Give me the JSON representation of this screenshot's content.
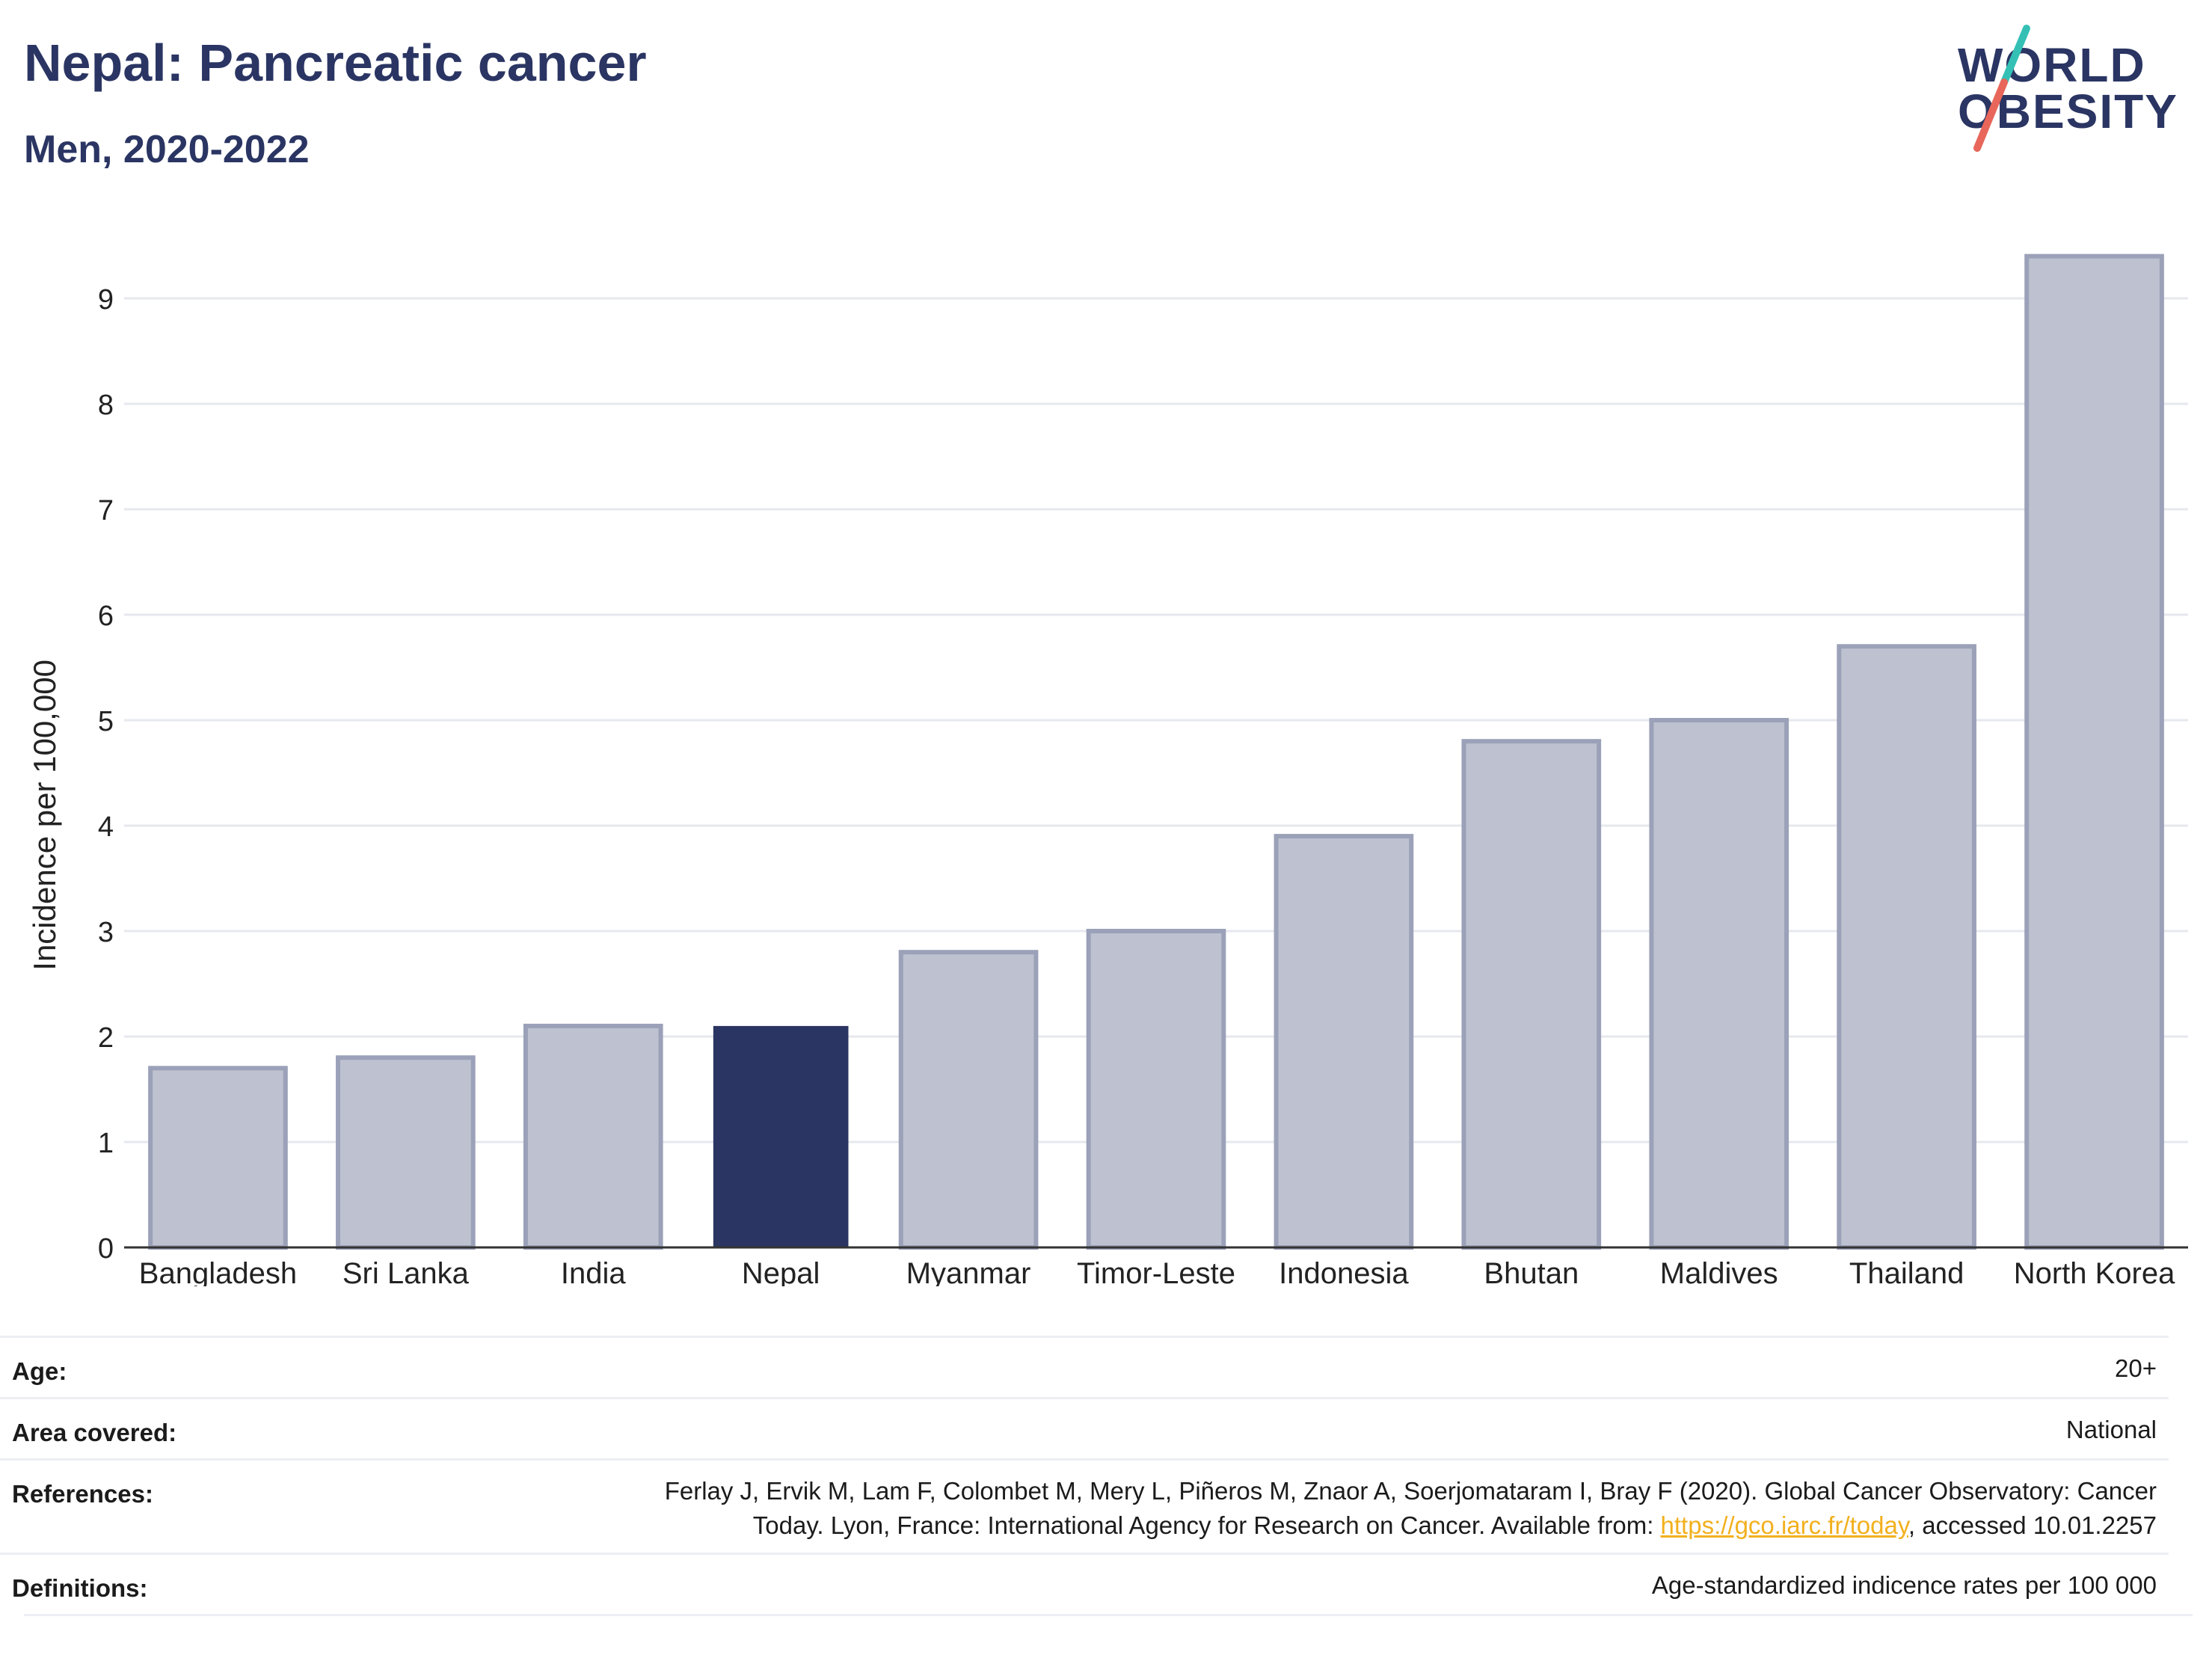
{
  "header": {
    "title": "Nepal: Pancreatic cancer",
    "subtitle": "Men, 2020-2022"
  },
  "logo": {
    "line1": "WORLD",
    "line2": "OBESITY",
    "accent_teal": "#35c0b5",
    "accent_red": "#e8665a"
  },
  "colors": {
    "highlight": "#2a3563",
    "bar_fill": "#bec2d0",
    "bar_stroke": "#9ba1b8",
    "grid": "#e6e8ee",
    "text": "#2a3563"
  },
  "chart_data": {
    "type": "bar",
    "categories": [
      "Bangladesh",
      "Sri Lanka",
      "India",
      "Nepal",
      "Myanmar",
      "Timor-Leste",
      "Indonesia",
      "Bhutan",
      "Maldives",
      "Thailand",
      "North Korea"
    ],
    "values": [
      1.7,
      1.8,
      2.1,
      2.1,
      2.8,
      3.0,
      3.9,
      4.8,
      5.0,
      5.7,
      9.4
    ],
    "highlight": "Nepal",
    "ylabel": "Incidence per 100,000",
    "yticks": [
      0,
      1,
      2,
      3,
      4,
      5,
      6,
      7,
      8,
      9
    ],
    "ylim": [
      0,
      9.6
    ],
    "grid": true
  },
  "info": {
    "age_label": "Age:",
    "age_value": "20+",
    "area_label": "Area covered:",
    "area_value": "National",
    "ref_label": "References:",
    "ref_line1": "Ferlay J, Ervik M, Lam F, Colombet M, Mery L, Piñeros M, Znaor A, Soerjomataram I, Bray F (2020). Global Cancer Observatory: Cancer",
    "ref_line2_pre": "Today. Lyon, France: International Agency for Research on Cancer. Available from: ",
    "ref_link": "https://gco.iarc.fr/today",
    "ref_line2_post": ", accessed 10.01.2257",
    "def_label": "Definitions:",
    "def_value": "Age-standardized indicence rates per 100 000"
  }
}
